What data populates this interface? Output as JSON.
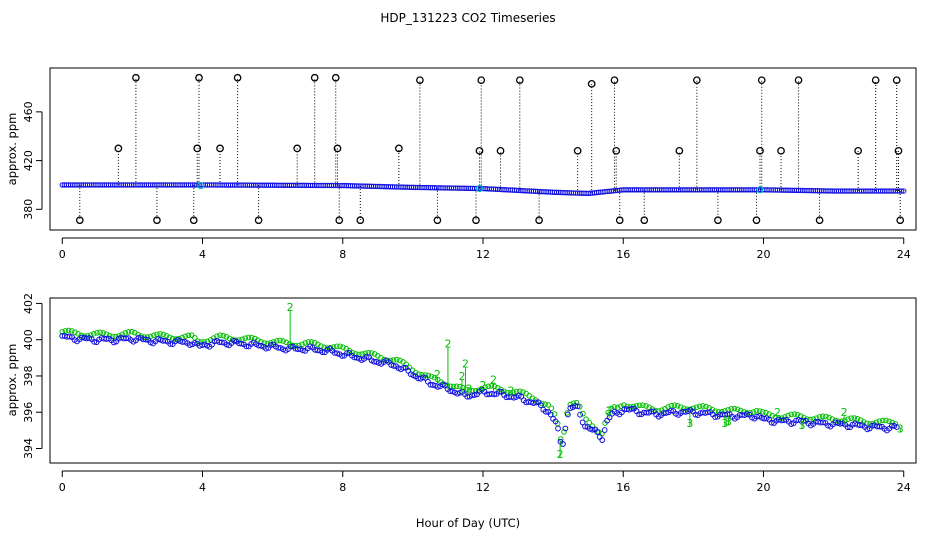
{
  "title": "HDP_131223  CO2 Timeseries",
  "xlabel": "Hour of Day (UTC)",
  "colors": {
    "raw": "#000000",
    "series": "#1010e0",
    "flag": "#00c000",
    "alt": "#00c0c0"
  },
  "chart_data": [
    {
      "type": "scatter",
      "id": "top",
      "ylabel": "approx. ppm",
      "xlim": [
        -0.35,
        24.35
      ],
      "ylim": [
        363,
        496
      ],
      "xticks": [
        0,
        4,
        8,
        12,
        16,
        20,
        24
      ],
      "yticks": [
        380,
        420,
        460
      ],
      "baseline": [
        [
          0,
          400
        ],
        [
          4,
          400
        ],
        [
          8,
          399.5
        ],
        [
          10,
          398
        ],
        [
          12,
          397
        ],
        [
          14,
          394
        ],
        [
          15,
          393
        ],
        [
          16,
          396
        ],
        [
          20,
          396
        ],
        [
          22,
          395
        ],
        [
          24,
          395
        ]
      ],
      "spikes": [
        {
          "x": 0.5,
          "y": 371
        },
        {
          "x": 1.6,
          "y": 430
        },
        {
          "x": 2.1,
          "y": 488
        },
        {
          "x": 2.7,
          "y": 371
        },
        {
          "x": 3.75,
          "y": 371
        },
        {
          "x": 3.85,
          "y": 430
        },
        {
          "x": 3.9,
          "y": 488
        },
        {
          "x": 4.5,
          "y": 430
        },
        {
          "x": 5.0,
          "y": 488
        },
        {
          "x": 5.6,
          "y": 371
        },
        {
          "x": 6.7,
          "y": 430
        },
        {
          "x": 7.2,
          "y": 488
        },
        {
          "x": 7.8,
          "y": 488
        },
        {
          "x": 7.85,
          "y": 430
        },
        {
          "x": 7.9,
          "y": 371
        },
        {
          "x": 8.5,
          "y": 371
        },
        {
          "x": 9.6,
          "y": 430
        },
        {
          "x": 10.2,
          "y": 486
        },
        {
          "x": 10.7,
          "y": 371
        },
        {
          "x": 11.8,
          "y": 371
        },
        {
          "x": 11.9,
          "y": 428
        },
        {
          "x": 11.95,
          "y": 486
        },
        {
          "x": 12.5,
          "y": 428
        },
        {
          "x": 13.05,
          "y": 486
        },
        {
          "x": 13.6,
          "y": 371
        },
        {
          "x": 14.7,
          "y": 428
        },
        {
          "x": 15.1,
          "y": 483
        },
        {
          "x": 15.75,
          "y": 486
        },
        {
          "x": 15.8,
          "y": 428
        },
        {
          "x": 15.9,
          "y": 371
        },
        {
          "x": 16.6,
          "y": 371
        },
        {
          "x": 17.6,
          "y": 428
        },
        {
          "x": 18.1,
          "y": 486
        },
        {
          "x": 18.7,
          "y": 371
        },
        {
          "x": 19.8,
          "y": 371
        },
        {
          "x": 19.9,
          "y": 428
        },
        {
          "x": 19.95,
          "y": 486
        },
        {
          "x": 20.5,
          "y": 428
        },
        {
          "x": 21.0,
          "y": 486
        },
        {
          "x": 21.6,
          "y": 371
        },
        {
          "x": 22.7,
          "y": 428
        },
        {
          "x": 23.2,
          "y": 486
        },
        {
          "x": 23.8,
          "y": 486
        },
        {
          "x": 23.85,
          "y": 428
        },
        {
          "x": 23.9,
          "y": 371
        }
      ]
    },
    {
      "type": "scatter",
      "id": "bottom",
      "ylabel": "approx. ppm",
      "xlim": [
        -0.35,
        24.35
      ],
      "ylim": [
        393.2,
        402.3
      ],
      "xticks": [
        0,
        4,
        8,
        12,
        16,
        20,
        24
      ],
      "yticks": [
        394,
        396,
        398,
        400,
        402
      ],
      "series": [
        [
          0.0,
          400.15
        ],
        [
          0.5,
          400.05
        ],
        [
          1.0,
          400.0
        ],
        [
          1.5,
          400.0
        ],
        [
          2.0,
          400.05
        ],
        [
          2.5,
          399.95
        ],
        [
          3.0,
          399.9
        ],
        [
          3.5,
          399.85
        ],
        [
          3.7,
          399.85
        ],
        [
          3.9,
          399.6
        ],
        [
          4.0,
          399.7
        ],
        [
          4.5,
          399.85
        ],
        [
          5.0,
          399.8
        ],
        [
          5.5,
          399.7
        ],
        [
          6.0,
          399.6
        ],
        [
          6.5,
          399.5
        ],
        [
          7.0,
          399.5
        ],
        [
          7.5,
          399.4
        ],
        [
          7.8,
          399.3
        ],
        [
          8.0,
          399.2
        ],
        [
          8.5,
          399.0
        ],
        [
          9.0,
          398.8
        ],
        [
          9.5,
          398.6
        ],
        [
          10.0,
          398.1
        ],
        [
          10.5,
          397.6
        ],
        [
          11.0,
          397.3
        ],
        [
          11.5,
          396.9
        ],
        [
          12.0,
          397.1
        ],
        [
          12.5,
          397.0
        ],
        [
          13.0,
          396.8
        ],
        [
          13.5,
          396.5
        ],
        [
          13.9,
          396.0
        ],
        [
          14.1,
          395.3
        ],
        [
          14.25,
          394.0
        ],
        [
          14.4,
          395.8
        ],
        [
          14.5,
          396.3
        ],
        [
          14.7,
          396.2
        ],
        [
          14.9,
          395.3
        ],
        [
          15.2,
          394.9
        ],
        [
          15.4,
          394.6
        ],
        [
          15.55,
          395.6
        ],
        [
          15.7,
          395.9
        ],
        [
          15.85,
          395.9
        ],
        [
          16.0,
          396.2
        ],
        [
          16.5,
          396.0
        ],
        [
          17.0,
          395.9
        ],
        [
          17.5,
          396.0
        ],
        [
          18.0,
          396.0
        ],
        [
          18.5,
          395.9
        ],
        [
          19.0,
          395.8
        ],
        [
          19.5,
          395.8
        ],
        [
          19.8,
          395.8
        ],
        [
          20.0,
          395.6
        ],
        [
          20.5,
          395.5
        ],
        [
          21.0,
          395.5
        ],
        [
          21.5,
          395.4
        ],
        [
          22.0,
          395.35
        ],
        [
          22.5,
          395.3
        ],
        [
          23.0,
          395.2
        ],
        [
          23.5,
          395.15
        ],
        [
          23.8,
          395.15
        ]
      ],
      "flags": [
        {
          "x": 6.5,
          "y": 401.8,
          "label": "2"
        },
        {
          "x": 11.0,
          "y": 399.8,
          "label": "2"
        },
        {
          "x": 11.5,
          "y": 398.7,
          "label": "2"
        },
        {
          "x": 10.7,
          "y": 398.1,
          "label": "2"
        },
        {
          "x": 11.4,
          "y": 398.0,
          "label": "2"
        },
        {
          "x": 12.3,
          "y": 397.8,
          "label": "2"
        },
        {
          "x": 12.0,
          "y": 397.5,
          "label": "2"
        },
        {
          "x": 11.6,
          "y": 397.3,
          "label": "2"
        },
        {
          "x": 12.8,
          "y": 397.2,
          "label": "2"
        },
        {
          "x": 14.2,
          "y": 393.7,
          "label": "2"
        },
        {
          "x": 15.6,
          "y": 396.1,
          "label": "2"
        },
        {
          "x": 20.4,
          "y": 396.0,
          "label": "2"
        },
        {
          "x": 22.3,
          "y": 396.0,
          "label": "2"
        },
        {
          "x": 19.0,
          "y": 395.5,
          "label": "3"
        },
        {
          "x": 17.9,
          "y": 395.4,
          "label": "3"
        },
        {
          "x": 18.9,
          "y": 395.4,
          "label": "3"
        },
        {
          "x": 21.1,
          "y": 395.3,
          "label": "3"
        },
        {
          "x": 23.9,
          "y": 395.1,
          "label": "3"
        }
      ]
    }
  ]
}
